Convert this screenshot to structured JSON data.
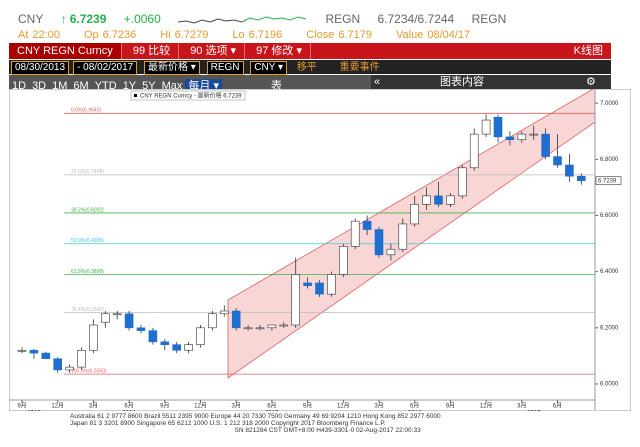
{
  "quote": {
    "ticker": "CNY",
    "arrow": "↑",
    "last": "6.7239",
    "change": "+.0060",
    "source": "REGN",
    "bid_ask": "6.7234/6.7244",
    "source2": "REGN"
  },
  "stats": [
    {
      "label": "At",
      "value": "22:00"
    },
    {
      "label": "Op",
      "value": "6.7236"
    },
    {
      "label": "Hi",
      "value": "6.7279"
    },
    {
      "label": "Lo",
      "value": "6.7196"
    },
    {
      "label": "Close",
      "value": "6.7179"
    },
    {
      "label": "Value",
      "value": "08/04/17"
    }
  ],
  "toolbar": {
    "security": "CNY REGN Curncy",
    "buttons": [
      "99 比较",
      "90 选项 ▾",
      "97 修改 ▾"
    ],
    "chart_type": "K线图"
  },
  "settings": {
    "start": "08/30/2013",
    "end": "- 08/02/2017",
    "field": "最新价格 ▾",
    "source": "REGN",
    "currency": "CNY ▾",
    "toggles": [
      "移平",
      "重要事件"
    ]
  },
  "periods": [
    "1D",
    "3D",
    "1M",
    "6M",
    "YTD",
    "1Y",
    "5Y",
    "Max"
  ],
  "frequency": "每月 ▾",
  "table": "表",
  "collapse": "«",
  "chart_content": "图表内容",
  "settings_icon": "⚙",
  "chart_data": {
    "type": "candlestick",
    "legend": "CNY REGN Curncy - 最新价格 6.7239",
    "categories": [
      "9月",
      null,
      null,
      "12月",
      null,
      null,
      "3月",
      null,
      null,
      "6月",
      null,
      null,
      "9月",
      null,
      null,
      "12月",
      null,
      null,
      "3月",
      null,
      null,
      "6月",
      null,
      null,
      "9月",
      null,
      null,
      "12月",
      null,
      null,
      "3月",
      null,
      null,
      "6月",
      null,
      null,
      "9月",
      null,
      null,
      "12月",
      null,
      null,
      "3月",
      null,
      null,
      "6月",
      null,
      null
    ],
    "years": [
      null,
      "2013",
      null,
      null,
      null,
      null,
      null,
      null,
      null,
      "2014",
      null,
      null,
      null,
      null,
      null,
      null,
      null,
      null,
      null,
      null,
      null,
      "2015",
      null,
      null,
      null,
      null,
      null,
      null,
      null,
      null,
      null,
      null,
      null,
      "2016",
      null,
      null,
      null,
      null,
      null,
      null,
      null,
      null,
      null,
      "2017",
      null,
      null,
      null,
      null
    ],
    "open": [
      6.12,
      6.12,
      6.11,
      6.09,
      6.05,
      6.06,
      6.12,
      6.22,
      6.25,
      6.25,
      6.2,
      6.19,
      6.15,
      6.14,
      6.12,
      6.14,
      6.2,
      6.25,
      6.26,
      6.2,
      6.2,
      6.2,
      6.21,
      6.21,
      6.36,
      6.36,
      6.32,
      6.39,
      6.49,
      6.58,
      6.55,
      6.46,
      6.48,
      6.57,
      6.64,
      6.67,
      6.64,
      6.67,
      6.77,
      6.89,
      6.95,
      6.88,
      6.87,
      6.89,
      6.89,
      6.81,
      6.78,
      6.74
    ],
    "high": [
      6.13,
      6.125,
      6.115,
      6.095,
      6.07,
      6.13,
      6.23,
      6.26,
      6.26,
      6.26,
      6.21,
      6.2,
      6.16,
      6.15,
      6.15,
      6.21,
      6.26,
      6.28,
      6.27,
      6.21,
      6.21,
      6.21,
      6.22,
      6.45,
      6.38,
      6.37,
      6.4,
      6.5,
      6.59,
      6.6,
      6.56,
      6.5,
      6.59,
      6.67,
      6.7,
      6.72,
      6.68,
      6.78,
      6.91,
      6.96,
      6.96,
      6.9,
      6.9,
      6.92,
      6.91,
      6.89,
      6.82,
      6.75
    ],
    "low": [
      6.11,
      6.09,
      6.09,
      6.04,
      6.04,
      6.05,
      6.11,
      6.2,
      6.23,
      6.19,
      6.18,
      6.14,
      6.12,
      6.11,
      6.11,
      6.13,
      6.19,
      6.24,
      6.19,
      6.19,
      6.19,
      6.19,
      6.2,
      6.2,
      6.34,
      6.31,
      6.31,
      6.38,
      6.48,
      6.53,
      6.45,
      6.44,
      6.47,
      6.56,
      6.62,
      6.63,
      6.63,
      6.66,
      6.76,
      6.88,
      6.86,
      6.85,
      6.86,
      6.87,
      6.8,
      6.77,
      6.72,
      6.71
    ],
    "close": [
      6.12,
      6.11,
      6.09,
      6.05,
      6.06,
      6.12,
      6.21,
      6.25,
      6.25,
      6.2,
      6.19,
      6.15,
      6.14,
      6.12,
      6.14,
      6.2,
      6.25,
      6.26,
      6.2,
      6.2,
      6.2,
      6.21,
      6.21,
      6.39,
      6.35,
      6.32,
      6.39,
      6.49,
      6.58,
      6.55,
      6.46,
      6.48,
      6.57,
      6.64,
      6.67,
      6.64,
      6.67,
      6.77,
      6.89,
      6.94,
      6.88,
      6.87,
      6.89,
      6.89,
      6.81,
      6.78,
      6.74,
      6.7239
    ],
    "up_color": "#ffffff",
    "down_color": "#1f6fd0",
    "ylim": [
      5.95,
      7.04
    ],
    "yticks": [
      {
        "value": 6,
        "label": "6.0000"
      },
      {
        "value": 6.2,
        "label": "6.2000"
      },
      {
        "value": 6.4,
        "label": "6.4000"
      },
      {
        "value": 6.6,
        "label": "6.6000"
      },
      {
        "value": 6.8,
        "label": "6.8000"
      },
      {
        "value": 7,
        "label": "7.0000"
      }
    ],
    "last_value": 6.7239,
    "fib_levels": [
      {
        "label": "0.0%(6.9640)",
        "value": 6.964,
        "color": "#e06060"
      },
      {
        "label": "23.6%(6.7448)",
        "value": 6.7448,
        "color": "#bbbbbb"
      },
      {
        "label": "38.2%(6.6092)",
        "value": 6.6092,
        "color": "#3cb44b"
      },
      {
        "label": "50.0%(6.4995)",
        "value": 6.4995,
        "color": "#40c8e0"
      },
      {
        "label": "61.8%(6.3898)",
        "value": 6.3898,
        "color": "#3cb44b"
      },
      {
        "label": "76.4%(6.2542)",
        "value": 6.2542,
        "color": "#bbbbbb"
      },
      {
        "label": "100.0%(6.0350)",
        "value": 6.035,
        "color": "#e06060"
      }
    ]
  },
  "footer": [
    "Australia 61 2 9777 8600 Brazil 5511 2395 9000 Europe 44 20 7330 7500 Germany 49 69 9204 1210 Hong Kong 852 2977 6000",
    "Japan 81 3 3201 8900 Singapore 65 6212 1000 U.S. 1 212 318 2000 Copyright 2017 Bloomberg Finance L.P.",
    "SN 821284 CST GMT+8:00 H439-3301-0 02-Aug-2017 22:00:33"
  ]
}
